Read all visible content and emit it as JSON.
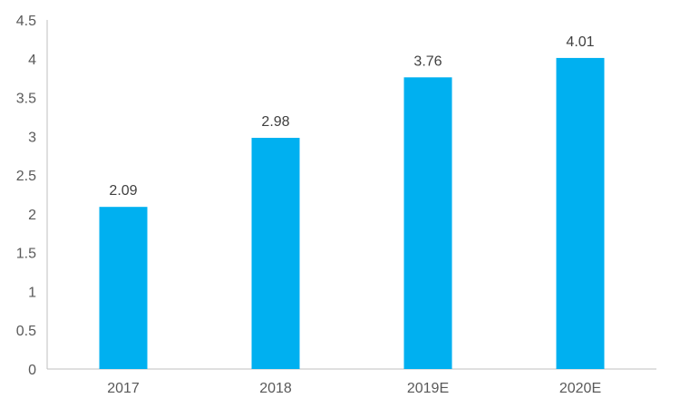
{
  "chart_data": {
    "type": "bar",
    "title": "",
    "xlabel": "",
    "ylabel": "",
    "categories": [
      "2017",
      "2018",
      "2019E",
      "2020E"
    ],
    "values": [
      2.09,
      2.98,
      3.76,
      4.01
    ],
    "data_labels": [
      "2.09",
      "2.98",
      "3.76",
      "4.01"
    ],
    "ylim": [
      0,
      4.5
    ],
    "yticks": [
      "0",
      "0.5",
      "1",
      "1.5",
      "2",
      "2.5",
      "3",
      "3.5",
      "4",
      "4.5"
    ],
    "grid": false,
    "legend": "none",
    "bar_color": "#00B0F0"
  }
}
